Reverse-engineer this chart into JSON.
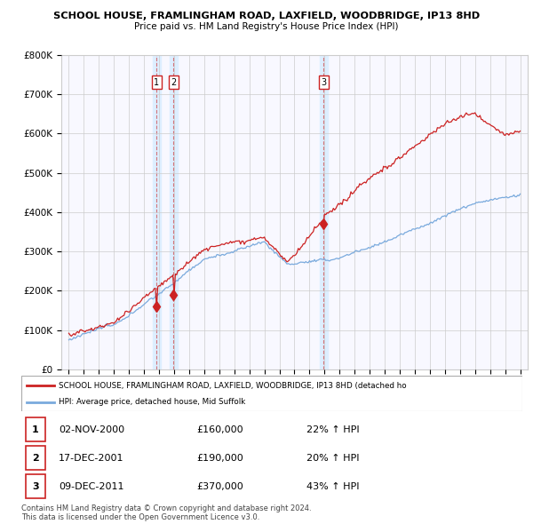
{
  "title1": "SCHOOL HOUSE, FRAMLINGHAM ROAD, LAXFIELD, WOODBRIDGE, IP13 8HD",
  "title2": "Price paid vs. HM Land Registry's House Price Index (HPI)",
  "ylim": [
    0,
    800000
  ],
  "yticks": [
    0,
    100000,
    200000,
    300000,
    400000,
    500000,
    600000,
    700000,
    800000
  ],
  "sale_dates": [
    2000.84,
    2001.96,
    2011.94
  ],
  "sale_prices": [
    160000,
    190000,
    370000
  ],
  "sale_labels": [
    "1",
    "2",
    "3"
  ],
  "vline_dates": [
    2000.84,
    2001.96,
    2011.94
  ],
  "hpi_color": "#7aaadd",
  "price_color": "#cc2222",
  "vband_color": "#ddeeff",
  "legend1": "SCHOOL HOUSE, FRAMLINGHAM ROAD, LAXFIELD, WOODBRIDGE, IP13 8HD (detached ho",
  "legend2": "HPI: Average price, detached house, Mid Suffolk",
  "table_rows": [
    [
      "1",
      "02-NOV-2000",
      "£160,000",
      "22% ↑ HPI"
    ],
    [
      "2",
      "17-DEC-2001",
      "£190,000",
      "20% ↑ HPI"
    ],
    [
      "3",
      "09-DEC-2011",
      "£370,000",
      "43% ↑ HPI"
    ]
  ],
  "footnote1": "Contains HM Land Registry data © Crown copyright and database right 2024.",
  "footnote2": "This data is licensed under the Open Government Licence v3.0."
}
